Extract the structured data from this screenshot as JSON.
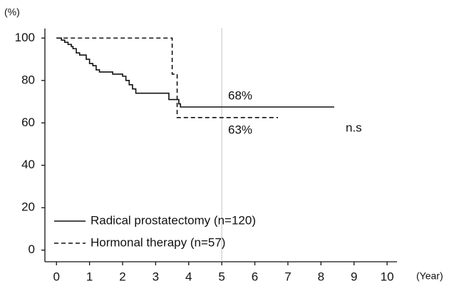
{
  "chart_data": {
    "type": "step",
    "y_label": "(%)",
    "x_label": "(Year)",
    "xlim": [
      -0.35,
      10.3
    ],
    "ylim": [
      -5.5,
      104.5
    ],
    "xticks": [
      0,
      1,
      2,
      3,
      4,
      5,
      6,
      7,
      8,
      9,
      10
    ],
    "yticks": [
      0,
      20,
      40,
      60,
      80,
      100
    ],
    "reference_x": 5,
    "series": [
      {
        "name": "Radical prostatectomy (n=120)",
        "color": "#111111",
        "dash": "solid",
        "x": [
          0,
          0.15,
          0.25,
          0.35,
          0.45,
          0.5,
          0.6,
          0.7,
          0.9,
          1.0,
          1.1,
          1.2,
          1.3,
          1.7,
          2.0,
          2.1,
          2.2,
          2.3,
          2.4,
          3.4,
          3.7,
          3.75,
          8.4
        ],
        "values": [
          100,
          99,
          98,
          97,
          96,
          95,
          93,
          92,
          90,
          88,
          87,
          85,
          84,
          83,
          82,
          80,
          78,
          76,
          74,
          71,
          69,
          67.5,
          67.5
        ]
      },
      {
        "name": "Hormonal therapy (n=57)",
        "color": "#111111",
        "dash": "dashed",
        "x": [
          0,
          3.5,
          3.65,
          6.7
        ],
        "values": [
          100,
          83,
          62.5,
          62.5
        ]
      }
    ],
    "annotations": [
      "68%",
      "63%",
      "n.s"
    ]
  }
}
